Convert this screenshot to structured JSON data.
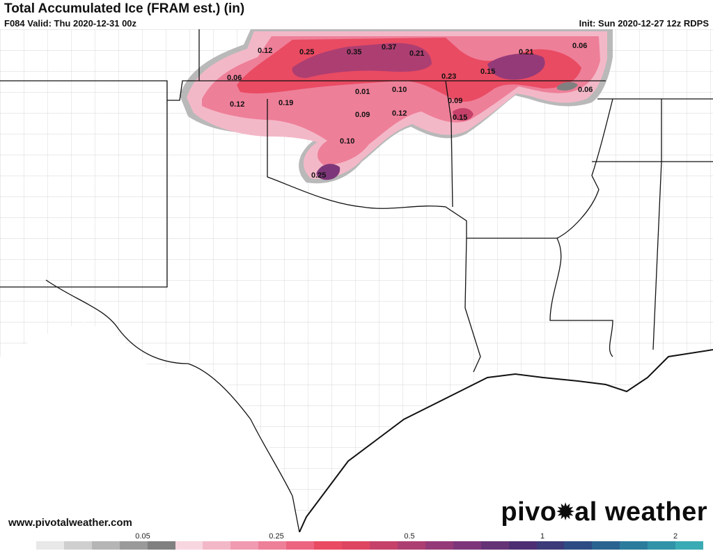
{
  "header": {
    "title": "Total Accumulated Ice (FRAM est.) (in)",
    "valid": "F084 Valid: Thu 2020-12-31 00z",
    "init": "Init: Sun 2020-12-27 12z RDPS"
  },
  "footer": {
    "url": "www.pivotalweather.com",
    "logo_left": "pivo",
    "logo_right": "al weather"
  },
  "colorbar": {
    "ticks": [
      "0.05",
      "0.25",
      "0.5",
      "1",
      "2"
    ],
    "colors": [
      "#ffffff",
      "#e8e8e8",
      "#cfcfcf",
      "#b5b5b5",
      "#9a9a9a",
      "#808080",
      "#f7d6df",
      "#f3b8c8",
      "#f09bb1",
      "#ee7f99",
      "#ec6480",
      "#e94b62",
      "#de4560",
      "#c6416a",
      "#ad3e72",
      "#953a78",
      "#7d3679",
      "#653276",
      "#4e2e72",
      "#3c3a78",
      "#2e4c84",
      "#2a6390",
      "#2b7b9c",
      "#3193a8",
      "#3aabb4"
    ]
  },
  "map": {
    "labels": [
      {
        "text": "0.12"
      },
      {
        "text": "0.25"
      },
      {
        "text": "0.35"
      },
      {
        "text": "0.37"
      },
      {
        "text": "0.21"
      },
      {
        "text": "0.21"
      },
      {
        "text": "0.06"
      },
      {
        "text": "0.06"
      },
      {
        "text": "0.23"
      },
      {
        "text": "0.15"
      },
      {
        "text": "0.01"
      },
      {
        "text": "0.10"
      },
      {
        "text": "0.06"
      },
      {
        "text": "0.12"
      },
      {
        "text": "0.19"
      },
      {
        "text": "0.09"
      },
      {
        "text": "0.12"
      },
      {
        "text": "0.09"
      },
      {
        "text": "0.15"
      },
      {
        "text": "0.10"
      },
      {
        "text": "0.25"
      }
    ]
  }
}
